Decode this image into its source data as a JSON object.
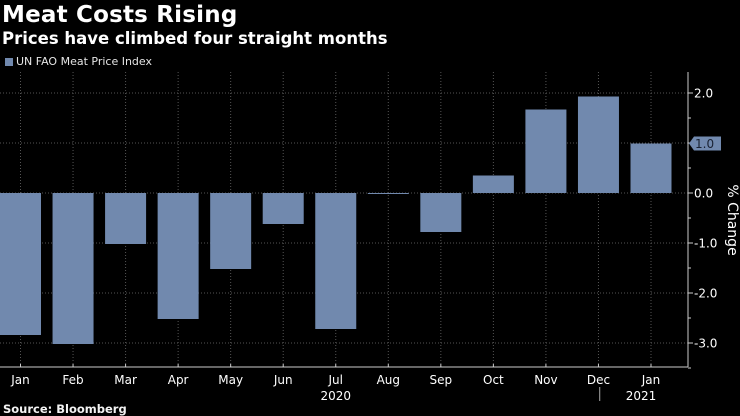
{
  "title": "Meat Costs Rising",
  "subtitle": "Prices have climbed four straight months",
  "source": "Source: Bloomberg",
  "colors": {
    "background": "#000000",
    "bar": "#7189ae",
    "text": "#ffffff",
    "grid": "#555555"
  },
  "chart_data": {
    "type": "bar",
    "title": "Meat Costs Rising",
    "subtitle": "Prices have climbed four straight months",
    "legend": [
      {
        "name": "UN FAO Meat Price Index",
        "color": "#7189ae"
      }
    ],
    "legend_position": "top-left",
    "categories": [
      "Jan",
      "Feb",
      "Mar",
      "Apr",
      "May",
      "Jun",
      "Jul",
      "Aug",
      "Sep",
      "Oct",
      "Nov",
      "Dec",
      "Jan"
    ],
    "year_labels": [
      {
        "label": "2020",
        "under": "Jul"
      },
      {
        "label": "2021",
        "under": "Jan"
      }
    ],
    "series": [
      {
        "name": "UN FAO Meat Price Index",
        "values": [
          -2.84,
          -3.02,
          -1.02,
          -2.52,
          -1.52,
          -0.62,
          -2.72,
          -0.02,
          -0.78,
          0.35,
          1.67,
          1.93,
          0.99
        ]
      }
    ],
    "last_value_label": "1.0",
    "ylabel": "% Change",
    "xlabel": "",
    "y_axis_side": "right",
    "ylim": [
      -3.5,
      2.4
    ],
    "yticks": [
      2.0,
      1.0,
      0.0,
      -1.0,
      -2.0,
      -3.0
    ],
    "ytick_labels": [
      "2.0",
      "1.0",
      "0.0",
      "-1.0",
      "-2.0",
      "-3.0"
    ],
    "grid": true
  }
}
